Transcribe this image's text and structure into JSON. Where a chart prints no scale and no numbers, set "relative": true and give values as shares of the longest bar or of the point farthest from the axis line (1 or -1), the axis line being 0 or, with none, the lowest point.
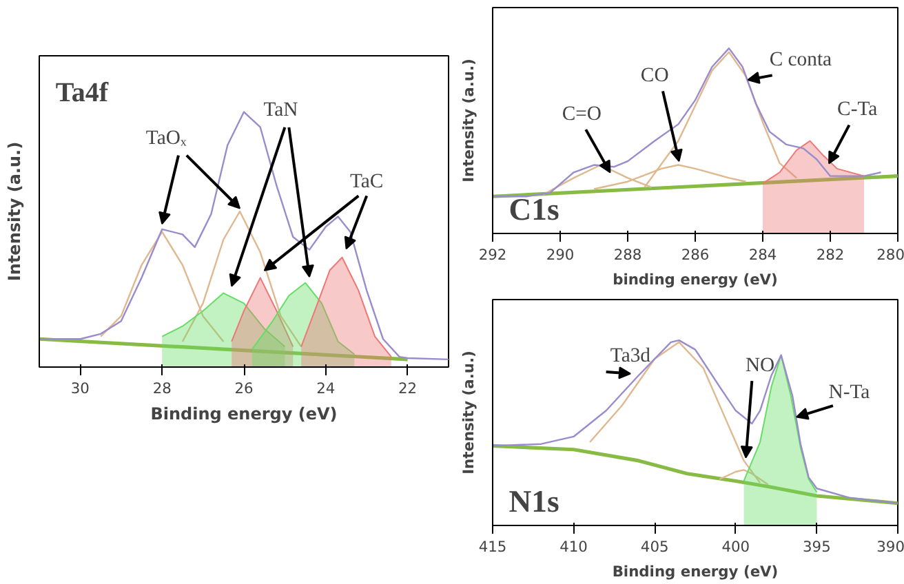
{
  "chart_data": [
    {
      "type": "line",
      "title": "Ta4f",
      "xlabel": "Binding energy (eV)",
      "ylabel": "Intensity (a.u.)",
      "relative": true,
      "xlim": [
        31,
        21
      ],
      "xticks": [
        30,
        28,
        26,
        24,
        22
      ],
      "grid": false,
      "series": [
        {
          "color": "#88bb44",
          "x": [
            31,
            22
          ],
          "values": [
            0.11,
            0.03
          ]
        },
        {
          "color": "#e0b890",
          "x": [
            29.5,
            29,
            28.5,
            28,
            27.5,
            27,
            26.5
          ],
          "values": [
            0.12,
            0.2,
            0.4,
            0.53,
            0.4,
            0.2,
            0.1
          ]
        },
        {
          "color": "#e0b890",
          "x": [
            27.5,
            27,
            26.5,
            26.1,
            25.6,
            25.1,
            24.6
          ],
          "values": [
            0.1,
            0.25,
            0.5,
            0.61,
            0.45,
            0.2,
            0.08
          ]
        },
        {
          "type": "area",
          "color": "#66dd66",
          "x": [
            28,
            27.5,
            27,
            26.5,
            26,
            25.5,
            25
          ],
          "values": [
            0.12,
            0.16,
            0.22,
            0.29,
            0.25,
            0.15,
            0.08
          ]
        },
        {
          "type": "area",
          "color": "#ee7777",
          "x": [
            26.3,
            26,
            25.6,
            25.2,
            24.8
          ],
          "values": [
            0.1,
            0.22,
            0.35,
            0.22,
            0.08
          ]
        },
        {
          "type": "area",
          "color": "#66dd66",
          "x": [
            25.8,
            25.3,
            24.9,
            24.5,
            24.1,
            23.7,
            23.3
          ],
          "values": [
            0.07,
            0.18,
            0.28,
            0.33,
            0.25,
            0.1,
            0.05
          ]
        },
        {
          "type": "area",
          "color": "#ee7777",
          "x": [
            24.6,
            24.2,
            23.9,
            23.6,
            23.2,
            22.8,
            22.4
          ],
          "values": [
            0.08,
            0.25,
            0.38,
            0.43,
            0.3,
            0.12,
            0.04
          ]
        },
        {
          "color": "#9a8ccc",
          "x": [
            31,
            30,
            29.5,
            29,
            28.5,
            28,
            27.5,
            27.2,
            26.8,
            26.4,
            26.0,
            25.6,
            25.2,
            24.8,
            24.4,
            24.0,
            23.7,
            23.4,
            23.0,
            22.6,
            22.2,
            22,
            21
          ],
          "values": [
            0.11,
            0.11,
            0.13,
            0.18,
            0.35,
            0.54,
            0.52,
            0.47,
            0.6,
            0.87,
            1.0,
            0.94,
            0.71,
            0.51,
            0.46,
            0.55,
            0.59,
            0.53,
            0.3,
            0.11,
            0.04,
            0.035,
            0.03
          ]
        }
      ],
      "annotations": [
        "TaOₓ",
        "TaN",
        "TaC"
      ]
    },
    {
      "type": "line",
      "title": "C1s",
      "xlabel": "binding energy (eV)",
      "ylabel": "Intensity (a.u.)",
      "relative": true,
      "xlim": [
        292,
        280
      ],
      "xticks": [
        292,
        290,
        288,
        286,
        284,
        282,
        280
      ],
      "grid": false,
      "series": [
        {
          "color": "#88bb44",
          "x": [
            292,
            280
          ],
          "values": [
            0.2,
            0.31
          ]
        },
        {
          "color": "#e0b890",
          "x": [
            290.5,
            289.6,
            288.8,
            288,
            287.3
          ],
          "values": [
            0.21,
            0.3,
            0.37,
            0.3,
            0.25
          ]
        },
        {
          "color": "#e0b890",
          "x": [
            289,
            288,
            287,
            286.5,
            286,
            285,
            284.5
          ],
          "values": [
            0.24,
            0.28,
            0.35,
            0.37,
            0.35,
            0.3,
            0.28
          ]
        },
        {
          "color": "#e0b890",
          "x": [
            287.5,
            286.5,
            285.5,
            285,
            284.5,
            284,
            283.5,
            283
          ],
          "values": [
            0.25,
            0.5,
            0.88,
            0.98,
            0.85,
            0.6,
            0.38,
            0.3
          ]
        },
        {
          "type": "area",
          "color": "#ee7777",
          "x": [
            284,
            283.5,
            283,
            282.6,
            282.2,
            281.8,
            281
          ],
          "values": [
            0.27,
            0.33,
            0.45,
            0.5,
            0.42,
            0.35,
            0.31
          ]
        },
        {
          "color": "#9a8ccc",
          "x": [
            292,
            291,
            290.3,
            289.6,
            289,
            288.4,
            288,
            287.2,
            286.5,
            286,
            285.5,
            285,
            284.6,
            284.2,
            283.8,
            283.3,
            282.8,
            282.4,
            282,
            281.5,
            281,
            280.5
          ],
          "values": [
            0.2,
            0.2,
            0.22,
            0.33,
            0.37,
            0.36,
            0.39,
            0.5,
            0.59,
            0.72,
            0.9,
            1.0,
            0.9,
            0.7,
            0.55,
            0.48,
            0.46,
            0.4,
            0.31,
            0.31,
            0.31,
            0.33
          ]
        }
      ],
      "annotations": [
        "C=O",
        "CO",
        "C conta",
        "C-Ta"
      ]
    },
    {
      "type": "line",
      "title": "N1s",
      "xlabel": "Binding energy (eV)",
      "ylabel": "Intensity (a.u.)",
      "relative": true,
      "xlim": [
        415,
        390
      ],
      "xticks": [
        415,
        410,
        405,
        400,
        395,
        390
      ],
      "grid": false,
      "series": [
        {
          "color": "#88bb44",
          "x": [
            415,
            410,
            406,
            403,
            400,
            398,
            395,
            390
          ],
          "values": [
            0.43,
            0.41,
            0.35,
            0.28,
            0.24,
            0.21,
            0.16,
            0.12
          ]
        },
        {
          "color": "#e0b890",
          "x": [
            409,
            407,
            405,
            403.5,
            402,
            400.5,
            399.5,
            398.5
          ],
          "values": [
            0.45,
            0.65,
            0.9,
            0.99,
            0.85,
            0.55,
            0.35,
            0.23
          ]
        },
        {
          "color": "#e0b890",
          "x": [
            401,
            400,
            399.5,
            399,
            398
          ],
          "values": [
            0.25,
            0.29,
            0.3,
            0.28,
            0.22
          ]
        },
        {
          "type": "area",
          "color": "#66dd66",
          "x": [
            399.5,
            398.5,
            397.8,
            397.2,
            396.6,
            396,
            395.5,
            395
          ],
          "values": [
            0.24,
            0.45,
            0.75,
            0.92,
            0.7,
            0.42,
            0.25,
            0.18
          ]
        },
        {
          "color": "#9a8ccc",
          "x": [
            415,
            412,
            410,
            408,
            406,
            404,
            403.5,
            402.5,
            401,
            400,
            399,
            398.5,
            397.8,
            397.2,
            396.5,
            396,
            395.5,
            395,
            393,
            390
          ],
          "values": [
            0.43,
            0.44,
            0.48,
            0.62,
            0.81,
            0.99,
            1.0,
            0.95,
            0.75,
            0.62,
            0.55,
            0.62,
            0.81,
            0.92,
            0.7,
            0.44,
            0.26,
            0.2,
            0.15,
            0.12
          ]
        }
      ],
      "annotations": [
        "Ta3d",
        "NO",
        "N-Ta"
      ]
    }
  ]
}
